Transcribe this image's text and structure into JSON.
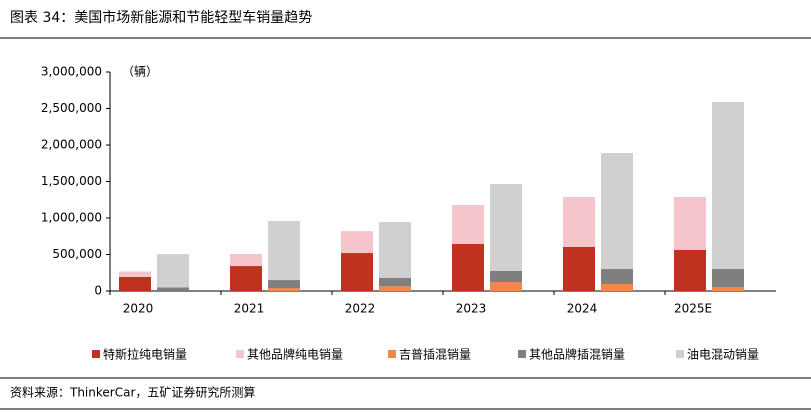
{
  "chart_data": {
    "type": "stacked_bar",
    "title": "图表 34：美国市场新能源和节能轻型车销量趋势",
    "y_label": "（辆）",
    "source": "资料来源：ThinkerCar，五矿证券研究所测算",
    "categories": [
      "2020",
      "2021",
      "2022",
      "2023",
      "2024",
      "2025E"
    ],
    "series": [
      {
        "name": "特斯拉纯电销量",
        "color": "#c0311f",
        "stack": 0,
        "values": [
          192000,
          342000,
          520000,
          644000,
          603000,
          562000
        ]
      },
      {
        "name": "其他品牌纯电销量",
        "color": "#f6c5cb",
        "stack": 0,
        "values": [
          75000,
          165000,
          300000,
          534000,
          685000,
          726000
        ]
      },
      {
        "name": "吉普插混销量",
        "color": "#f0884e",
        "stack": 1,
        "values": [
          5000,
          40000,
          65000,
          123000,
          96000,
          55000
        ]
      },
      {
        "name": "其他品牌插混销量",
        "color": "#7f7f7f",
        "stack": 1,
        "values": [
          45000,
          110000,
          113000,
          151000,
          205000,
          246000
        ]
      },
      {
        "name": "油电混动销量",
        "color": "#d0d0d0",
        "stack": 1,
        "values": [
          455000,
          809000,
          767000,
          1192000,
          1589000,
          2288000
        ]
      }
    ],
    "ylim": [
      0,
      3000000
    ],
    "yticks": [
      0,
      {
        "value": 500000,
        "label": "500,000"
      },
      {
        "value": 1000000,
        "label": "1,000,000"
      },
      {
        "value": 1500000,
        "label": "1,500,000"
      },
      {
        "value": 2000000,
        "label": "2,000,000"
      },
      {
        "value": 2500000,
        "label": "2,500,000"
      },
      {
        "value": 3000000,
        "label": "3,000,000"
      }
    ]
  }
}
